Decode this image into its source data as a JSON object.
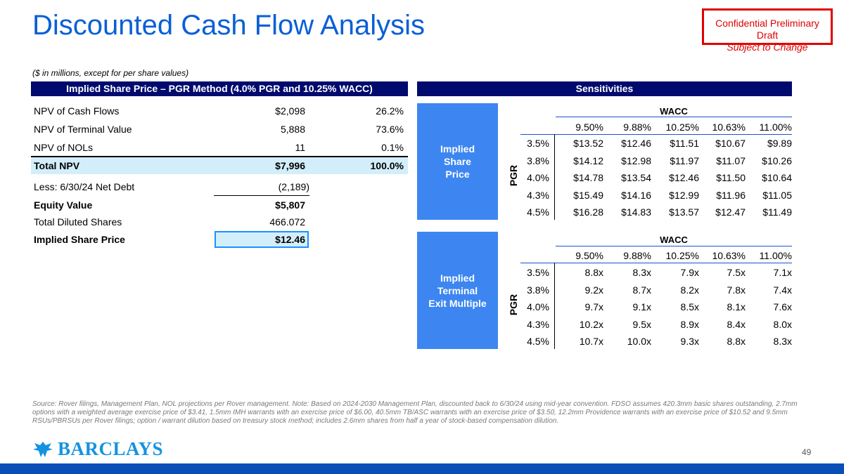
{
  "title": "Discounted Cash Flow Analysis",
  "confidential": {
    "line1": "Confidential Preliminary Draft",
    "line2": "Subject to Change"
  },
  "units_note": "($ in millions, except for per share values)",
  "left_header": "Implied Share Price – PGR Method (4.0% PGR and 10.25% WACC)",
  "right_header": "Sensitivities",
  "npv_rows": [
    {
      "label": "NPV of Cash Flows",
      "value": "$2,098",
      "pct": "26.2%"
    },
    {
      "label": "NPV of Terminal Value",
      "value": "5,888",
      "pct": "73.6%"
    },
    {
      "label": "NPV of NOLs",
      "value": "11",
      "pct": "0.1%"
    },
    {
      "label": "Total NPV",
      "value": "$7,996",
      "pct": "100.0%"
    }
  ],
  "bridge_rows": [
    {
      "label": "Less: 6/30/24 Net Debt",
      "value": "(2,189)"
    },
    {
      "label": "Equity Value",
      "value": "$5,807"
    },
    {
      "label": "Total Diluted Shares",
      "value": "466.072"
    },
    {
      "label": "Implied Share Price",
      "value": "$12.46"
    }
  ],
  "sens_price": {
    "panel_label": [
      "Implied",
      "Share",
      "Price"
    ],
    "row_axis": "PGR",
    "col_axis": "WACC",
    "cols": [
      "9.50%",
      "9.88%",
      "10.25%",
      "10.63%",
      "11.00%"
    ],
    "rows": [
      {
        "pgr": "3.5%",
        "vals": [
          "$13.52",
          "$12.46",
          "$11.51",
          "$10.67",
          "$9.89"
        ]
      },
      {
        "pgr": "3.8%",
        "vals": [
          "$14.12",
          "$12.98",
          "$11.97",
          "$11.07",
          "$10.26"
        ]
      },
      {
        "pgr": "4.0%",
        "vals": [
          "$14.78",
          "$13.54",
          "$12.46",
          "$11.50",
          "$10.64"
        ]
      },
      {
        "pgr": "4.3%",
        "vals": [
          "$15.49",
          "$14.16",
          "$12.99",
          "$11.96",
          "$11.05"
        ]
      },
      {
        "pgr": "4.5%",
        "vals": [
          "$16.28",
          "$14.83",
          "$13.57",
          "$12.47",
          "$11.49"
        ]
      }
    ]
  },
  "sens_multiple": {
    "panel_label": [
      "Implied",
      "Terminal",
      "Exit Multiple"
    ],
    "row_axis": "PGR",
    "col_axis": "WACC",
    "cols": [
      "9.50%",
      "9.88%",
      "10.25%",
      "10.63%",
      "11.00%"
    ],
    "rows": [
      {
        "pgr": "3.5%",
        "vals": [
          "8.8x",
          "8.3x",
          "7.9x",
          "7.5x",
          "7.1x"
        ]
      },
      {
        "pgr": "3.8%",
        "vals": [
          "9.2x",
          "8.7x",
          "8.2x",
          "7.8x",
          "7.4x"
        ]
      },
      {
        "pgr": "4.0%",
        "vals": [
          "9.7x",
          "9.1x",
          "8.5x",
          "8.1x",
          "7.6x"
        ]
      },
      {
        "pgr": "4.3%",
        "vals": [
          "10.2x",
          "9.5x",
          "8.9x",
          "8.4x",
          "8.0x"
        ]
      },
      {
        "pgr": "4.5%",
        "vals": [
          "10.7x",
          "10.0x",
          "9.3x",
          "8.8x",
          "8.3x"
        ]
      }
    ]
  },
  "footnote": "Source: Rover filings, Management Plan, NOL projections per Rover management. Note: Based on 2024-2030 Management Plan, discounted back to 6/30/24 using mid-year convention. FDSO assumes 420.3mm basic shares outstanding, 2.7mm options with a weighted average exercise price of $3.41, 1.5mm IMH warrants with an exercise price of $6.00, 40.5mm TB/ASC warrants with an exercise price of $3.50, 12.2mm Providence warrants with an exercise price of $10.52 and 9.5mm RSUs/PBRSUs per Rover filings; option / warrant dilution based on treasury stock method; includes 2.6mm shares from half a year of stock-based compensation dilution.",
  "logo_text": "BARCLAYS",
  "page_number": "49",
  "colors": {
    "title": "#0a5fd6",
    "header": "#000a6e",
    "panel": "#3d86f1",
    "highlight": "#d3eefb",
    "confidential": "#e00000"
  }
}
